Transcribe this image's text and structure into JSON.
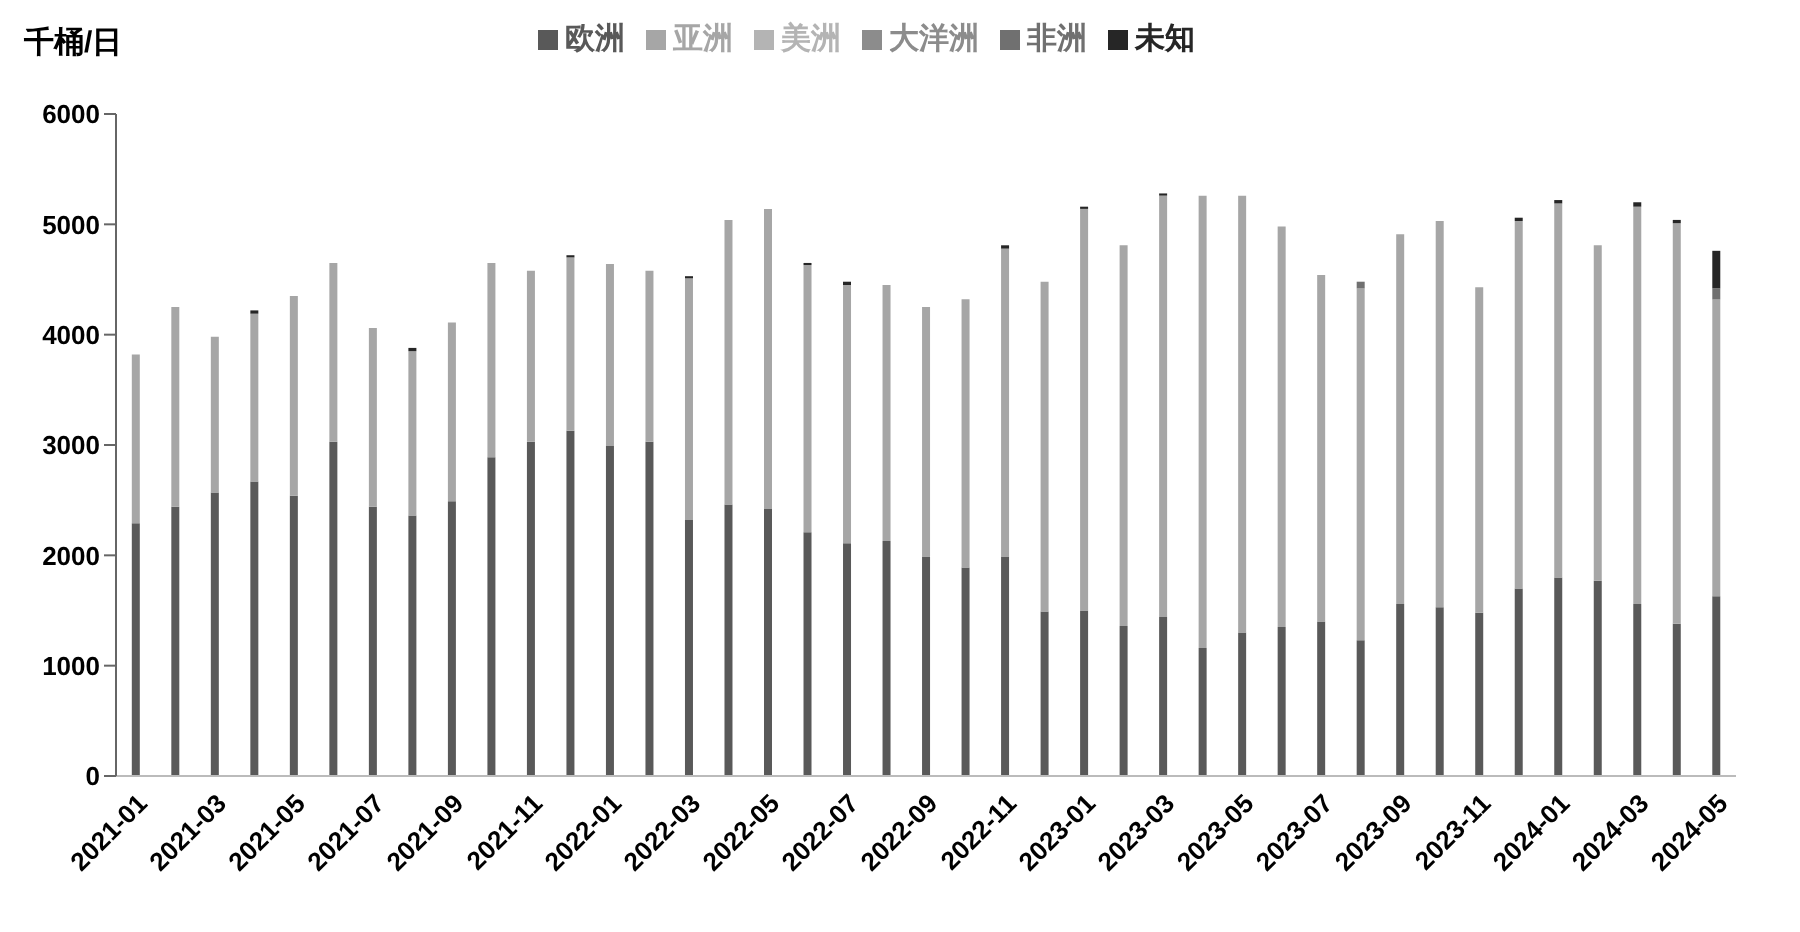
{
  "chart_data": {
    "type": "bar",
    "stacked": true,
    "ylabel": "千桶/日",
    "categories": [
      "2021-01",
      null,
      "2021-03",
      null,
      "2021-05",
      null,
      "2021-07",
      null,
      "2021-09",
      null,
      "2021-11",
      null,
      "2022-01",
      null,
      "2022-03",
      null,
      "2022-05",
      null,
      "2022-07",
      null,
      "2022-09",
      null,
      "2022-11",
      null,
      "2023-01",
      null,
      "2023-03",
      null,
      "2023-05",
      null,
      "2023-07",
      null,
      "2023-09",
      null,
      "2023-11",
      null,
      "2024-01",
      null,
      "2024-03",
      null,
      "2024-05"
    ],
    "series": [
      {
        "name": "欧洲",
        "color": "#595959",
        "values": [
          2290,
          2440,
          2570,
          2670,
          2540,
          3030,
          2440,
          2360,
          2490,
          2890,
          3030,
          3130,
          2990,
          3030,
          2320,
          2460,
          2420,
          2210,
          2110,
          2130,
          1990,
          1890,
          1990,
          1490,
          1500,
          1360,
          1440,
          1160,
          1300,
          1350,
          1400,
          1230,
          1560,
          1530,
          1480,
          1700,
          1800,
          1770,
          1560,
          1380,
          1630
        ]
      },
      {
        "name": "亚洲",
        "color": "#a6a6a6",
        "values": [
          1530,
          1810,
          1410,
          1520,
          1810,
          1620,
          1620,
          1490,
          1620,
          1760,
          1550,
          1570,
          1650,
          1550,
          2190,
          2580,
          2720,
          2420,
          2340,
          2320,
          2260,
          2430,
          2790,
          2990,
          3640,
          3450,
          3820,
          4100,
          3960,
          3630,
          3140,
          3190,
          3350,
          3500,
          2950,
          3330,
          3390,
          3040,
          3600,
          3630,
          2690
        ]
      },
      {
        "name": "美洲",
        "color": "#b4b4b4",
        "values": [
          0,
          0,
          0,
          0,
          0,
          0,
          0,
          0,
          0,
          0,
          0,
          0,
          0,
          0,
          0,
          0,
          0,
          0,
          0,
          0,
          0,
          0,
          0,
          0,
          0,
          0,
          0,
          0,
          0,
          0,
          0,
          0,
          0,
          0,
          0,
          0,
          0,
          0,
          0,
          0,
          0
        ]
      },
      {
        "name": "大洋洲",
        "color": "#8c8c8c",
        "values": [
          0,
          0,
          0,
          0,
          0,
          0,
          0,
          0,
          0,
          0,
          0,
          0,
          0,
          0,
          0,
          0,
          0,
          0,
          0,
          0,
          0,
          0,
          0,
          0,
          0,
          0,
          0,
          0,
          0,
          0,
          0,
          0,
          0,
          0,
          0,
          0,
          0,
          0,
          0,
          0,
          0
        ]
      },
      {
        "name": "非洲",
        "color": "#707070",
        "values": [
          0,
          0,
          0,
          0,
          0,
          0,
          0,
          0,
          0,
          0,
          0,
          0,
          0,
          0,
          0,
          0,
          0,
          0,
          0,
          0,
          0,
          0,
          0,
          0,
          0,
          0,
          0,
          0,
          0,
          0,
          0,
          60,
          0,
          0,
          0,
          0,
          0,
          0,
          0,
          0,
          100
        ]
      },
      {
        "name": "未知",
        "color": "#262626",
        "values": [
          0,
          0,
          0,
          30,
          0,
          0,
          0,
          30,
          0,
          0,
          0,
          20,
          0,
          0,
          20,
          0,
          0,
          20,
          30,
          0,
          0,
          0,
          30,
          0,
          20,
          0,
          20,
          0,
          0,
          0,
          0,
          0,
          0,
          0,
          0,
          30,
          30,
          0,
          40,
          30,
          340
        ]
      }
    ],
    "ylim": [
      0,
      6000
    ],
    "yticks": [
      0,
      1000,
      2000,
      3000,
      4000,
      5000,
      6000
    ],
    "grid": false,
    "legend": "top"
  }
}
